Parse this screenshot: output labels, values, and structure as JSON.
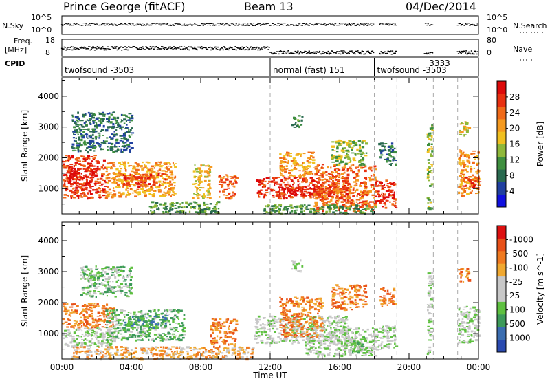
{
  "header": {
    "station": "Prince George (fitACF)",
    "beam": "Beam 13",
    "date": "04/Dec/2014"
  },
  "strip_labels": {
    "nsky": "N.Sky",
    "nsky_top": "10^5",
    "nsky_bottom": "10^0",
    "nsearch": "N.Search",
    "nsearch_top": "10^5",
    "nsearch_bottom": "10^0",
    "freq_line1": "Freq.",
    "freq_line2": "[MHz]",
    "freq_top": "18",
    "freq_bottom": "8",
    "nave": "Nave",
    "nave_top": "80",
    "nave_bottom": "0",
    "cpid": "CPID"
  },
  "cpid_segments": [
    {
      "label": "twofsound -3503",
      "start_hour": 0.0,
      "end_hour": 12.0
    },
    {
      "label": "normal (fast) 151",
      "start_hour": 12.0,
      "end_hour": 18.0
    },
    {
      "label": "twofsound -3503",
      "start_hour": 18.0,
      "end_hour": 24.0
    },
    {
      "label": "3333",
      "start_hour": 21.0,
      "end_hour": 21.5
    }
  ],
  "x_axis": {
    "label": "Time UT",
    "ticks": [
      "00:00",
      "04:00",
      "08:00",
      "12:00",
      "16:00",
      "20:00",
      "00:00"
    ],
    "range_hours": [
      0,
      24
    ]
  },
  "y_axis": {
    "label": "Slant Range [km]",
    "ticks": [
      "1000",
      "2000",
      "3000",
      "4000"
    ],
    "range_km": [
      180,
      4600
    ]
  },
  "colors": {
    "axis": "#000000",
    "vline": "#aaaaaa"
  },
  "chart_data": [
    {
      "type": "heatmap",
      "title": "Power [dB]",
      "x_unit": "hour UT",
      "y_unit": "km",
      "colorbar": {
        "label": "Power [dB]",
        "ticks": [
          "4",
          "8",
          "12",
          "16",
          "20",
          "24",
          "28"
        ],
        "colors": [
          "#1010e0",
          "#2040a0",
          "#2a6a50",
          "#3f8f3f",
          "#8fb83a",
          "#f0c020",
          "#f59a20",
          "#f06a18",
          "#e83010",
          "#dd0a0a"
        ]
      },
      "regions": [
        {
          "x0": 0.0,
          "x1": 2.5,
          "y0": 700,
          "y1": 2100,
          "level": 8
        },
        {
          "x0": 0.3,
          "x1": 2.0,
          "y0": 1100,
          "y1": 1700,
          "level": 9
        },
        {
          "x0": 2.5,
          "x1": 6.5,
          "y0": 750,
          "y1": 1900,
          "level": 6
        },
        {
          "x0": 3.5,
          "x1": 6.0,
          "y0": 1100,
          "y1": 1500,
          "level": 8
        },
        {
          "x0": 0.5,
          "x1": 4.0,
          "y0": 2200,
          "y1": 3500,
          "level": 2
        },
        {
          "x0": 5.0,
          "x1": 9.0,
          "y0": 200,
          "y1": 600,
          "level": 3
        },
        {
          "x0": 7.5,
          "x1": 8.5,
          "y0": 700,
          "y1": 1800,
          "level": 5
        },
        {
          "x0": 9.0,
          "x1": 10.0,
          "y0": 700,
          "y1": 1500,
          "level": 7
        },
        {
          "x0": 11.2,
          "x1": 16.5,
          "y0": 700,
          "y1": 1400,
          "level": 8
        },
        {
          "x0": 12.5,
          "x1": 15.5,
          "y0": 800,
          "y1": 1100,
          "level": 9
        },
        {
          "x0": 12.5,
          "x1": 14.5,
          "y0": 1400,
          "y1": 2200,
          "level": 6
        },
        {
          "x0": 13.2,
          "x1": 13.8,
          "y0": 3000,
          "y1": 3400,
          "level": 3
        },
        {
          "x0": 14.5,
          "x1": 18.0,
          "y0": 300,
          "y1": 1800,
          "level": 7
        },
        {
          "x0": 15.5,
          "x1": 17.5,
          "y0": 1800,
          "y1": 2600,
          "level": 4
        },
        {
          "x0": 11.5,
          "x1": 18.0,
          "y0": 200,
          "y1": 500,
          "level": 3
        },
        {
          "x0": 18.0,
          "x1": 19.2,
          "y0": 400,
          "y1": 1300,
          "level": 8
        },
        {
          "x0": 18.2,
          "x1": 19.2,
          "y0": 1800,
          "y1": 2500,
          "level": 2
        },
        {
          "x0": 21.0,
          "x1": 21.3,
          "y0": 300,
          "y1": 3100,
          "level": 4
        },
        {
          "x0": 22.8,
          "x1": 24.0,
          "y0": 800,
          "y1": 2300,
          "level": 6
        },
        {
          "x0": 23.0,
          "x1": 24.0,
          "y0": 1000,
          "y1": 1400,
          "level": 8
        },
        {
          "x0": 22.8,
          "x1": 23.4,
          "y0": 2700,
          "y1": 3200,
          "level": 5
        }
      ]
    },
    {
      "type": "heatmap",
      "title": "Velocity [m s^-1]",
      "x_unit": "hour UT",
      "y_unit": "km",
      "colorbar": {
        "label": "Velocity [m s^-1]",
        "ticks": [
          "1000",
          "500",
          "100",
          "25",
          "-25",
          "-100",
          "-500",
          "-1000"
        ],
        "colors": [
          "#2a4ab0",
          "#3b6db0",
          "#3d9a5a",
          "#5ec040",
          "#c8c8c8",
          "#c8c8c8",
          "#f0a830",
          "#f07a20",
          "#e85018",
          "#dd1010"
        ]
      },
      "regions": [
        {
          "x0": 0.0,
          "x1": 3.0,
          "y0": 1200,
          "y1": 2000,
          "level": 7
        },
        {
          "x0": 0.0,
          "x1": 3.0,
          "y0": 600,
          "y1": 1200,
          "level": 4
        },
        {
          "x0": 2.5,
          "x1": 7.0,
          "y0": 800,
          "y1": 1800,
          "level": 3
        },
        {
          "x0": 3.5,
          "x1": 6.0,
          "y0": 1200,
          "y1": 1600,
          "level": 2
        },
        {
          "x0": 1.0,
          "x1": 4.0,
          "y0": 2200,
          "y1": 3200,
          "level": 3
        },
        {
          "x0": 0.5,
          "x1": 11.0,
          "y0": 200,
          "y1": 600,
          "level": 6
        },
        {
          "x0": 8.5,
          "x1": 10.0,
          "y0": 600,
          "y1": 1500,
          "level": 7
        },
        {
          "x0": 11.0,
          "x1": 16.5,
          "y0": 700,
          "y1": 1600,
          "level": 4
        },
        {
          "x0": 12.5,
          "x1": 15.0,
          "y0": 900,
          "y1": 2200,
          "level": 7
        },
        {
          "x0": 13.2,
          "x1": 13.8,
          "y0": 3000,
          "y1": 3400,
          "level": 4
        },
        {
          "x0": 14.0,
          "x1": 18.0,
          "y0": 300,
          "y1": 1200,
          "level": 4
        },
        {
          "x0": 15.5,
          "x1": 17.5,
          "y0": 1800,
          "y1": 2600,
          "level": 7
        },
        {
          "x0": 16.5,
          "x1": 17.5,
          "y0": 400,
          "y1": 900,
          "level": 3
        },
        {
          "x0": 18.0,
          "x1": 19.2,
          "y0": 500,
          "y1": 1300,
          "level": 4
        },
        {
          "x0": 18.3,
          "x1": 19.2,
          "y0": 1900,
          "y1": 2500,
          "level": 7
        },
        {
          "x0": 21.0,
          "x1": 21.3,
          "y0": 300,
          "y1": 3000,
          "level": 4
        },
        {
          "x0": 22.8,
          "x1": 24.0,
          "y0": 700,
          "y1": 1900,
          "level": 4
        },
        {
          "x0": 22.8,
          "x1": 23.4,
          "y0": 2700,
          "y1": 3200,
          "level": 7
        }
      ]
    }
  ]
}
